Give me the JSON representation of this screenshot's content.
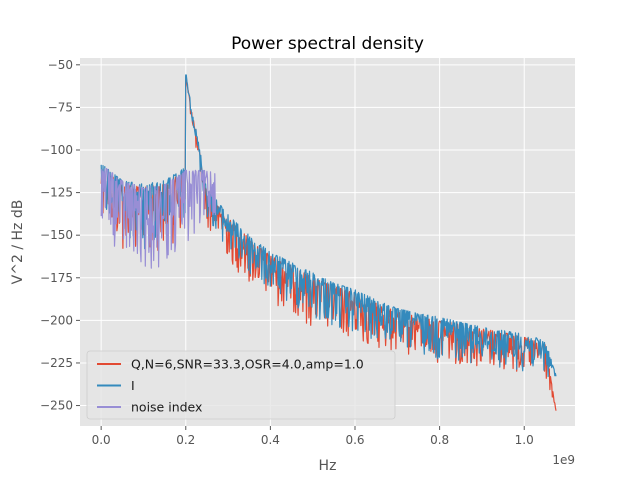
{
  "chart_data": {
    "type": "line",
    "title": "Power spectral density",
    "xlabel": "Hz",
    "ylabel": "V^2 / Hz dB",
    "x_offset_label": "1e9",
    "xlim": [
      -0.05,
      1.12
    ],
    "ylim": [
      -262,
      -46
    ],
    "xticks": [
      0.0,
      0.2,
      0.4,
      0.6,
      0.8,
      1.0
    ],
    "xtick_labels": [
      "0.0",
      "0.2",
      "0.4",
      "0.6",
      "0.8",
      "1.0"
    ],
    "yticks": [
      -50,
      -75,
      -100,
      -125,
      -150,
      -175,
      -200,
      -225,
      -250
    ],
    "ytick_labels": [
      "−50",
      "−75",
      "−100",
      "−125",
      "−150",
      "−175",
      "−200",
      "−225",
      "−250"
    ],
    "grid": true,
    "legend_position": "lower-left",
    "colors": {
      "plot_background": "#e5e5e5",
      "grid": "#ffffff",
      "series_q": "#e24a33",
      "series_i": "#348abd",
      "series_noise": "#988ed5"
    },
    "series": [
      {
        "name": "Q,N=6,SNR=33.3,OSR=4.0,amp=1.0",
        "color": "#e24a33",
        "x": [
          0.0,
          0.05,
          0.1,
          0.15,
          0.2,
          0.2,
          0.25,
          0.3,
          0.35,
          0.4,
          0.45,
          0.5,
          0.55,
          0.6,
          0.65,
          0.7,
          0.75,
          0.8,
          0.85,
          0.9,
          0.95,
          1.0,
          1.05,
          1.075
        ],
        "y": [
          -110,
          -120,
          -122,
          -120,
          -112,
          -57,
          -125,
          -140,
          -152,
          -162,
          -168,
          -175,
          -180,
          -184,
          -190,
          -195,
          -198,
          -200,
          -202,
          -205,
          -207,
          -210,
          -214,
          -253
        ],
        "min_envelope": [
          -135,
          -160,
          -162,
          -158,
          -150,
          -60,
          -145,
          -165,
          -180,
          -190,
          -195,
          -205,
          -210,
          -212,
          -218,
          -220,
          -222,
          -225,
          -226,
          -228,
          -230,
          -232,
          -235,
          -253
        ]
      },
      {
        "name": "I",
        "color": "#348abd",
        "x": [
          0.0,
          0.05,
          0.1,
          0.15,
          0.2,
          0.2,
          0.25,
          0.3,
          0.35,
          0.4,
          0.45,
          0.5,
          0.55,
          0.6,
          0.65,
          0.7,
          0.75,
          0.8,
          0.85,
          0.9,
          0.95,
          1.0,
          1.05,
          1.075
        ],
        "y": [
          -108,
          -118,
          -120,
          -118,
          -110,
          -56,
          -122,
          -138,
          -150,
          -160,
          -166,
          -172,
          -178,
          -182,
          -188,
          -193,
          -196,
          -198,
          -201,
          -204,
          -206,
          -208,
          -212,
          -232
        ],
        "min_envelope": [
          -142,
          -158,
          -160,
          -156,
          -148,
          -58,
          -140,
          -160,
          -175,
          -185,
          -192,
          -200,
          -205,
          -210,
          -213,
          -217,
          -220,
          -223,
          -224,
          -226,
          -228,
          -230,
          -233,
          -235
        ]
      },
      {
        "name": "noise index",
        "color": "#988ed5",
        "x": [
          0.0,
          0.05,
          0.1,
          0.15,
          0.2,
          0.27
        ],
        "y": [
          -108,
          -118,
          -122,
          -120,
          -112,
          -112
        ],
        "min_envelope": [
          -142,
          -168,
          -172,
          -168,
          -158,
          -140
        ]
      }
    ]
  }
}
